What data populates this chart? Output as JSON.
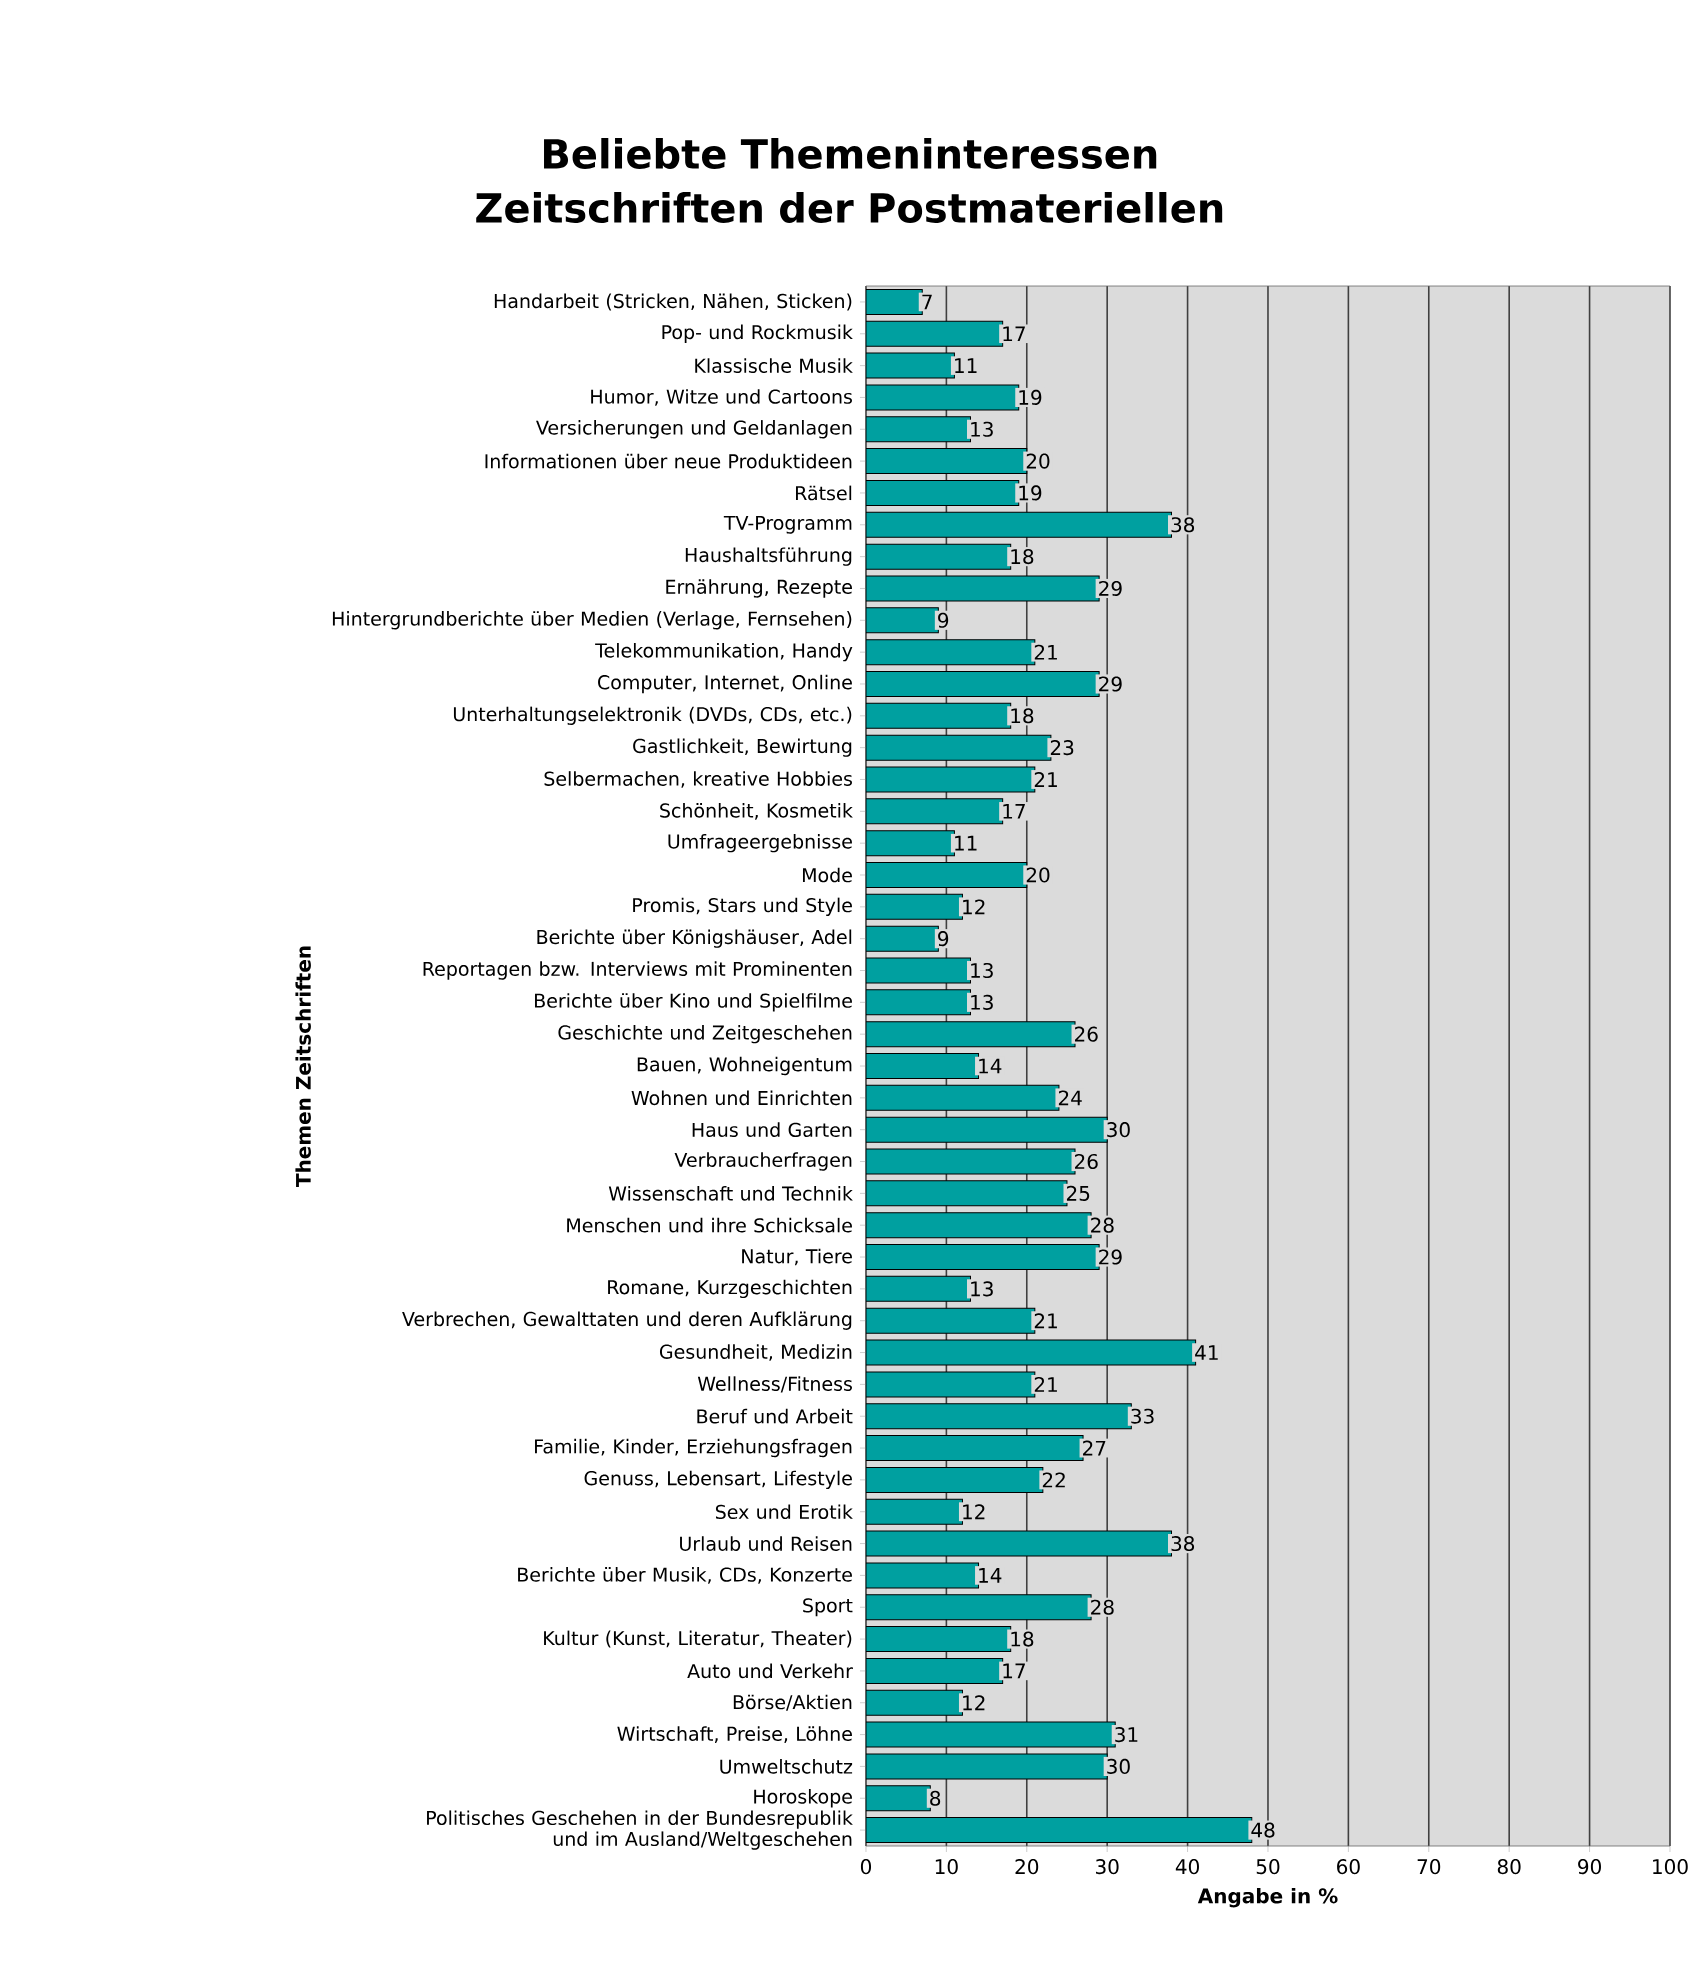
{
  "chart_data": {
    "type": "bar",
    "orientation": "horizontal",
    "title": "Beliebte Themeninteressen Zeitschriften der Postmateriellen",
    "xlabel": "Angabe in %",
    "ylabel": "Themen Zeitschriften",
    "categories": [
      "Handarbeit (Stricken, Nähen, Sticken)",
      "Pop- und Rockmusik",
      "Klassische Musik",
      "Humor, Witze und Cartoons",
      "Versicherungen und Geldanlagen",
      "Informationen über neue Produktideen",
      "Rätsel",
      "TV-Programm",
      "Haushaltsführung",
      "Ernährung, Rezepte",
      "Hintergrundberichte über Medien (Verlage, Fernsehen)",
      "Telekommunikation, Handy",
      "Computer, Internet, Online",
      "Unterhaltungselektronik (DVDs, CDs, etc.)",
      "Gastlichkeit, Bewirtung",
      "Selbermachen, kreative Hobbies",
      "Schönheit, Kosmetik",
      "Umfrageergebnisse",
      "Mode",
      "Promis, Stars und Style",
      "Berichte über Königshäuser, Adel",
      "Reportagen bzw. Interviews mit Prominenten",
      "Berichte über Kino und Spielfilme",
      "Geschichte und Zeitgeschehen",
      "Bauen, Wohneigentum",
      "Wohnen und Einrichten",
      "Haus und Garten",
      "Verbraucherfragen",
      "Wissenschaft und Technik",
      "Menschen und ihre Schicksale",
      "Natur, Tiere",
      "Romane, Kurzgeschichten",
      "Verbrechen, Gewalttaten und deren Aufklärung",
      "Gesundheit, Medizin",
      "Wellness/Fitness",
      "Beruf und Arbeit",
      "Familie, Kinder, Erziehungsfragen",
      "Genuss, Lebensart, Lifestyle",
      "Sex und Erotik",
      "Urlaub und Reisen",
      "Berichte über Musik, CDs, Konzerte",
      "Sport",
      "Kultur (Kunst, Literatur, Theater)",
      "Auto und Verkehr",
      "Börse/Aktien",
      "Wirtschaft, Preise, Löhne",
      "Umweltschutz",
      "Horoskope",
      "Politisches Geschehen in der Bundesrepublik und im Ausland/Weltgeschehen"
    ],
    "values": [
      7,
      17,
      11,
      19,
      13,
      20,
      19,
      38,
      18,
      29,
      9,
      21,
      29,
      18,
      23,
      21,
      17,
      11,
      20,
      12,
      9,
      13,
      13,
      26,
      14,
      24,
      30,
      26,
      25,
      28,
      29,
      13,
      21,
      41,
      21,
      33,
      27,
      22,
      12,
      38,
      14,
      28,
      18,
      17,
      12,
      31,
      30,
      8,
      48
    ],
    "color": "#00a0a0",
    "xlim": [
      0,
      100
    ],
    "xticks": [
      0,
      10,
      20,
      30,
      40,
      50,
      60,
      70,
      80,
      90,
      100
    ],
    "grid": "x",
    "data_labels": true
  }
}
